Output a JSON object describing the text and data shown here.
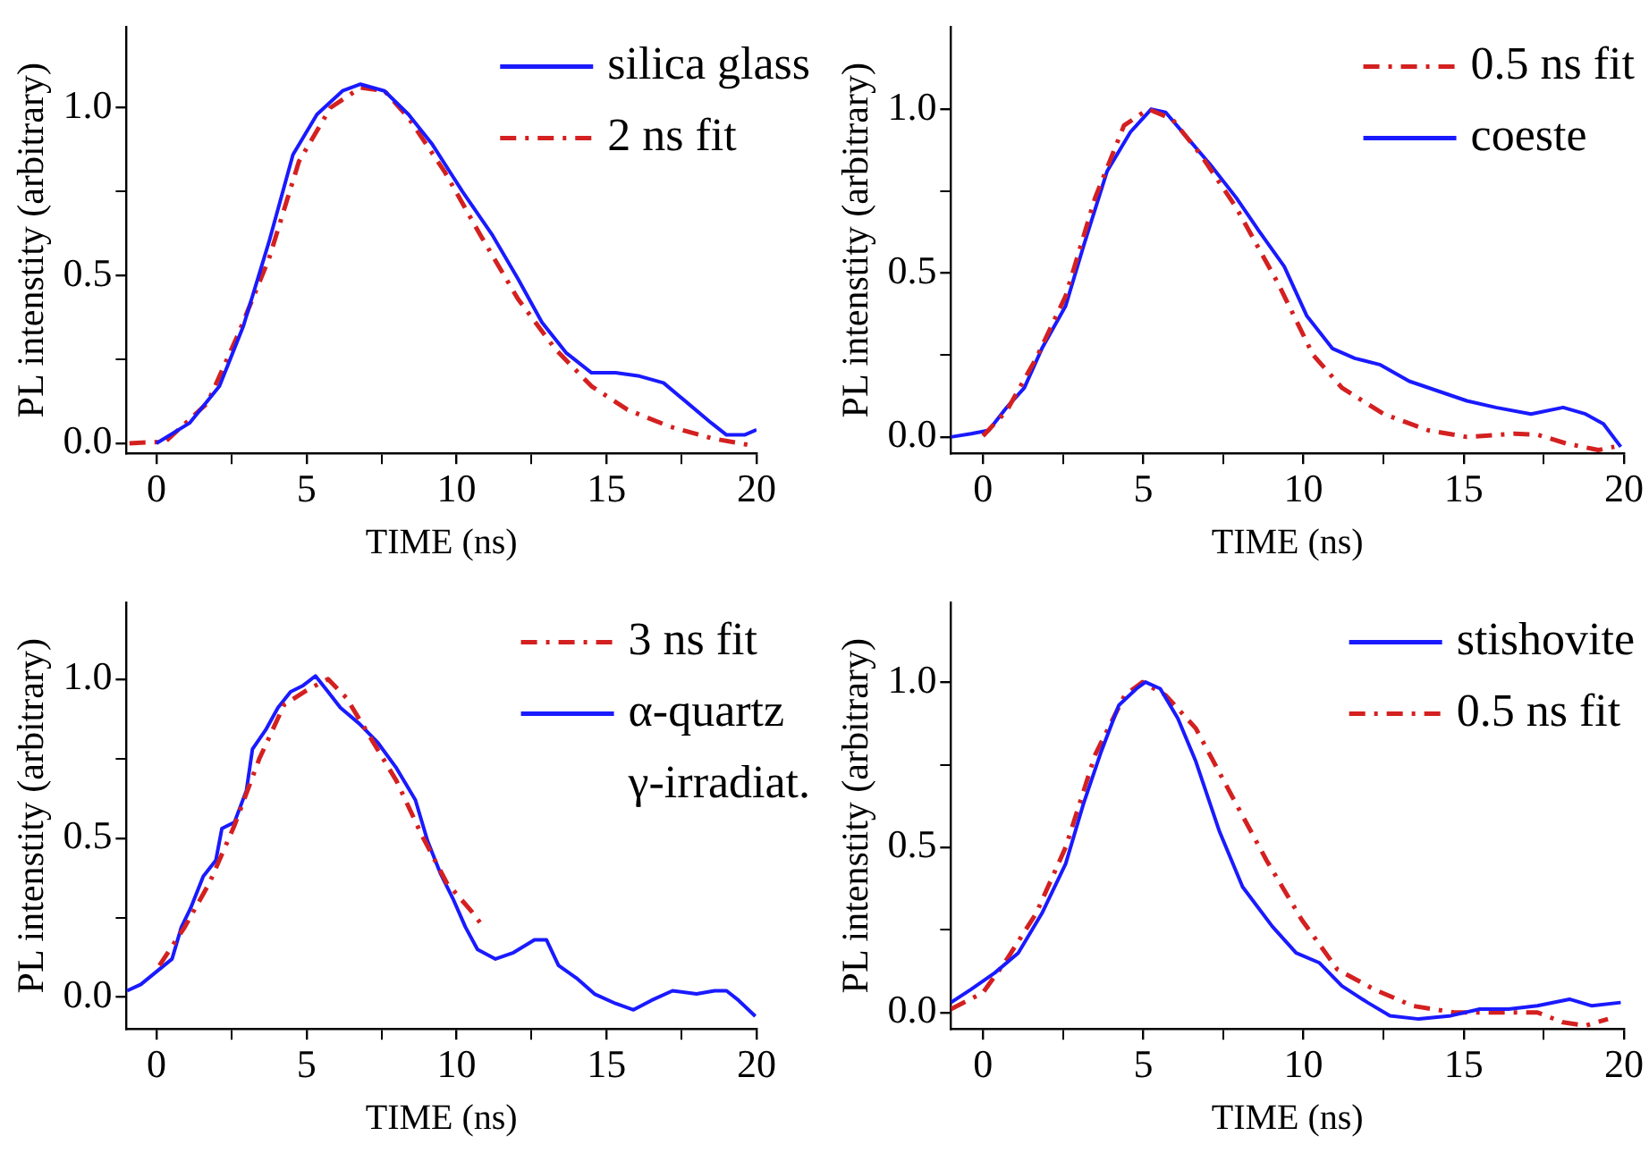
{
  "chart_data": [
    {
      "type": "line",
      "xlabel": "TIME (ns)",
      "ylabel": "PL intenstity (arbitrary)",
      "legend": "top right",
      "marker": "none",
      "xlim": [
        -1,
        20
      ],
      "xticks": [
        0,
        {
          "value": 2.5,
          "label": null
        },
        5,
        {
          "value": 7.5,
          "label": null
        },
        10,
        {
          "value": 12.5,
          "label": null
        },
        15,
        {
          "value": 17.5,
          "label": null
        },
        20
      ],
      "ylim": [
        -0.03,
        1.24
      ],
      "yticks": [
        {
          "value": 0,
          "label": "0.0"
        },
        {
          "value": 0.25,
          "label": null
        },
        {
          "value": 0.5,
          "label": "0.5"
        },
        {
          "value": 0.75,
          "label": null
        },
        {
          "value": 1,
          "label": "1.0"
        }
      ],
      "series": [
        {
          "name": "silica glass",
          "color": "#1a1aff",
          "line_style": "solid",
          "x": [
            0,
            1.1,
            2.1,
            2.9,
            3.75,
            4.55,
            5.35,
            6.2,
            6.8,
            7.6,
            8.4,
            9.2,
            10.2,
            11.2,
            12.05,
            12.85,
            13.65,
            14.5,
            15.3,
            16.1,
            16.9,
            17.7,
            18.5,
            19,
            19.6,
            20
          ],
          "values": [
            0,
            0.06,
            0.17,
            0.35,
            0.6,
            0.86,
            0.98,
            1.05,
            1.07,
            1.05,
            0.98,
            0.89,
            0.75,
            0.62,
            0.49,
            0.36,
            0.27,
            0.21,
            0.21,
            0.2,
            0.18,
            0.12,
            0.06,
            0.025,
            0.025,
            0.04
          ]
        },
        {
          "name": "2 ns fit",
          "color": "#d42020",
          "line_style": "dashed",
          "x": [
            -0.9,
            0.3,
            1.7,
            2.7,
            3.75,
            4.75,
            5.8,
            6.8,
            7.6,
            8.4,
            9.6,
            10.8,
            12.05,
            13.3,
            14.5,
            15.7,
            17.1,
            18.5,
            19.8
          ],
          "values": [
            0,
            0.005,
            0.12,
            0.32,
            0.55,
            0.84,
            1.0,
            1.06,
            1.05,
            0.97,
            0.81,
            0.62,
            0.43,
            0.28,
            0.17,
            0.1,
            0.05,
            0.015,
            -0.006
          ]
        }
      ]
    },
    {
      "type": "line",
      "xlabel": "TIME (ns)",
      "ylabel": "PL intenstity (arbitrary)",
      "legend": "top right",
      "marker": "none",
      "xlim": [
        -1,
        20
      ],
      "xticks": [
        0,
        {
          "value": 2.5,
          "label": null
        },
        5,
        {
          "value": 7.5,
          "label": null
        },
        10,
        {
          "value": 12.5,
          "label": null
        },
        15,
        {
          "value": 17.5,
          "label": null
        },
        20
      ],
      "ylim": [
        -0.05,
        1.25
      ],
      "yticks": [
        {
          "value": 0,
          "label": "0.0"
        },
        {
          "value": 0.25,
          "label": null
        },
        {
          "value": 0.5,
          "label": "0.5"
        },
        {
          "value": 0.75,
          "label": null
        },
        {
          "value": 1,
          "label": "1.0"
        }
      ],
      "series": [
        {
          "name": "0.5 ns fit",
          "color": "#d42020",
          "line_style": "dashed",
          "x": [
            0,
            0.74,
            1.66,
            2.58,
            3.5,
            4.4,
            5.16,
            5.9,
            6.8,
            7.9,
            9.2,
            10.3,
            11.2,
            12.5,
            13.9,
            15.1,
            16.6,
            17.3,
            18.2,
            19.2,
            19.7
          ],
          "values": [
            0.003,
            0.08,
            0.24,
            0.43,
            0.73,
            0.95,
            1.0,
            0.97,
            0.86,
            0.7,
            0.47,
            0.25,
            0.15,
            0.07,
            0.02,
            0,
            0.01,
            0.007,
            -0.02,
            -0.04,
            -0.03
          ]
        },
        {
          "name": "coeste",
          "color": "#1a1aff",
          "line_style": "solid",
          "x": [
            -1,
            -0.37,
            0.18,
            0.74,
            1.29,
            1.84,
            2.58,
            3.13,
            3.87,
            4.6,
            5.25,
            5.7,
            6.4,
            7.1,
            7.9,
            8.6,
            9.4,
            10.1,
            10.9,
            11.6,
            12.4,
            13.3,
            14.2,
            15.1,
            16,
            17.1,
            18.1,
            18.8,
            19.36,
            19.9
          ],
          "values": [
            0,
            0.01,
            0.02,
            0.09,
            0.15,
            0.27,
            0.4,
            0.58,
            0.81,
            0.93,
            1.0,
            0.99,
            0.91,
            0.83,
            0.73,
            0.63,
            0.52,
            0.37,
            0.27,
            0.24,
            0.22,
            0.17,
            0.14,
            0.11,
            0.09,
            0.07,
            0.09,
            0.07,
            0.04,
            -0.03
          ]
        }
      ]
    },
    {
      "type": "line",
      "xlabel": "TIME (ns)",
      "ylabel": "PL intenstity (arbitrary)",
      "legend": "top right",
      "marker": "none",
      "xlim": [
        -1,
        20
      ],
      "xticks": [
        0,
        {
          "value": 2.5,
          "label": null
        },
        5,
        {
          "value": 7.5,
          "label": null
        },
        10,
        {
          "value": 12.5,
          "label": null
        },
        15,
        {
          "value": 17.5,
          "label": null
        },
        20
      ],
      "ylim": [
        -0.1,
        1.24
      ],
      "yticks": [
        {
          "value": 0,
          "label": "0.0"
        },
        {
          "value": 0.25,
          "label": null
        },
        {
          "value": 0.5,
          "label": "0.5"
        },
        {
          "value": 0.75,
          "label": null
        },
        {
          "value": 1,
          "label": "1.0"
        }
      ],
      "series": [
        {
          "name": "3 ns fit",
          "color": "#d42020",
          "line_style": "dashed",
          "x": [
            0.1,
            0.94,
            1.77,
            2.6,
            3.43,
            4.26,
            5.1,
            5.72,
            6.34,
            7.17,
            8,
            8.84,
            9.67,
            10.5,
            10.9
          ],
          "values": [
            0.1,
            0.22,
            0.36,
            0.54,
            0.75,
            0.92,
            0.97,
            1.0,
            0.94,
            0.81,
            0.68,
            0.51,
            0.36,
            0.27,
            0.22
          ]
        },
        {
          "name": "α-quartz γ-irradiat.",
          "color": "#1a1aff",
          "line_style": "solid",
          "x": [
            -0.98,
            -0.52,
            0,
            0.52,
            0.83,
            1.14,
            1.56,
            1.98,
            2.18,
            2.6,
            3,
            3.2,
            3.64,
            4.05,
            4.47,
            4.89,
            5.3,
            5.72,
            6.13,
            6.76,
            7.38,
            8,
            8.63,
            9.04,
            9.46,
            9.88,
            10.3,
            10.7,
            11.3,
            11.9,
            12.6,
            13,
            13.4,
            14,
            14.6,
            15.3,
            15.9,
            16.5,
            17.2,
            18,
            18.6,
            19,
            19.4,
            19.96
          ],
          "values": [
            0.02,
            0.04,
            0.08,
            0.12,
            0.22,
            0.28,
            0.38,
            0.43,
            0.53,
            0.55,
            0.65,
            0.78,
            0.84,
            0.91,
            0.96,
            0.98,
            1.01,
            0.96,
            0.91,
            0.86,
            0.8,
            0.72,
            0.62,
            0.49,
            0.39,
            0.31,
            0.22,
            0.15,
            0.12,
            0.14,
            0.18,
            0.18,
            0.1,
            0.06,
            0.01,
            -0.02,
            -0.04,
            -0.01,
            0.02,
            0.01,
            0.02,
            0.02,
            -0.01,
            -0.06
          ]
        }
      ]
    },
    {
      "type": "line",
      "xlabel": "TIME (ns)",
      "ylabel": "PL intenstity (arbitrary)",
      "legend": "top right",
      "marker": "none",
      "xlim": [
        -1,
        20
      ],
      "xticks": [
        0,
        {
          "value": 2.5,
          "label": null
        },
        5,
        {
          "value": 7.5,
          "label": null
        },
        10,
        {
          "value": 12.5,
          "label": null
        },
        15,
        {
          "value": 17.5,
          "label": null
        },
        20
      ],
      "ylim": [
        -0.05,
        1.24
      ],
      "yticks": [
        {
          "value": 0,
          "label": "0.0"
        },
        {
          "value": 0.25,
          "label": null
        },
        {
          "value": 0.5,
          "label": "0.5"
        },
        {
          "value": 0.75,
          "label": null
        },
        {
          "value": 1,
          "label": "1.0"
        }
      ],
      "series": [
        {
          "name": "stishovite",
          "color": "#1a1aff",
          "line_style": "solid",
          "x": [
            -1,
            -0.37,
            0.37,
            1.1,
            1.84,
            2.58,
            3.13,
            3.69,
            4.24,
            4.79,
            5.07,
            5.53,
            6.08,
            6.64,
            7.37,
            8.1,
            9.03,
            9.77,
            10.5,
            11.2,
            12,
            12.7,
            13.6,
            14.6,
            15.5,
            16.4,
            17.3,
            18.3,
            19,
            19.9
          ],
          "values": [
            0.03,
            0.07,
            0.12,
            0.18,
            0.3,
            0.45,
            0.63,
            0.79,
            0.93,
            0.98,
            1.0,
            0.98,
            0.89,
            0.76,
            0.55,
            0.38,
            0.26,
            0.18,
            0.15,
            0.08,
            0.03,
            -0.01,
            -0.02,
            -0.01,
            0.01,
            0.01,
            0.02,
            0.04,
            0.02,
            0.03
          ]
        },
        {
          "name": "0.5 ns fit",
          "color": "#d42020",
          "line_style": "dashed",
          "x": [
            -1,
            0,
            0.74,
            1.66,
            2.58,
            3.5,
            4.42,
            4.98,
            5.7,
            6.64,
            7.74,
            8.85,
            9.95,
            11.06,
            12.2,
            13.4,
            14.7,
            16,
            17.3,
            18.1,
            18.8,
            19.5
          ],
          "values": [
            0.01,
            0.06,
            0.16,
            0.3,
            0.5,
            0.78,
            0.96,
            1.0,
            0.96,
            0.86,
            0.66,
            0.46,
            0.28,
            0.13,
            0.07,
            0.02,
            0,
            0,
            0,
            -0.03,
            -0.04,
            -0.02
          ]
        }
      ]
    }
  ]
}
